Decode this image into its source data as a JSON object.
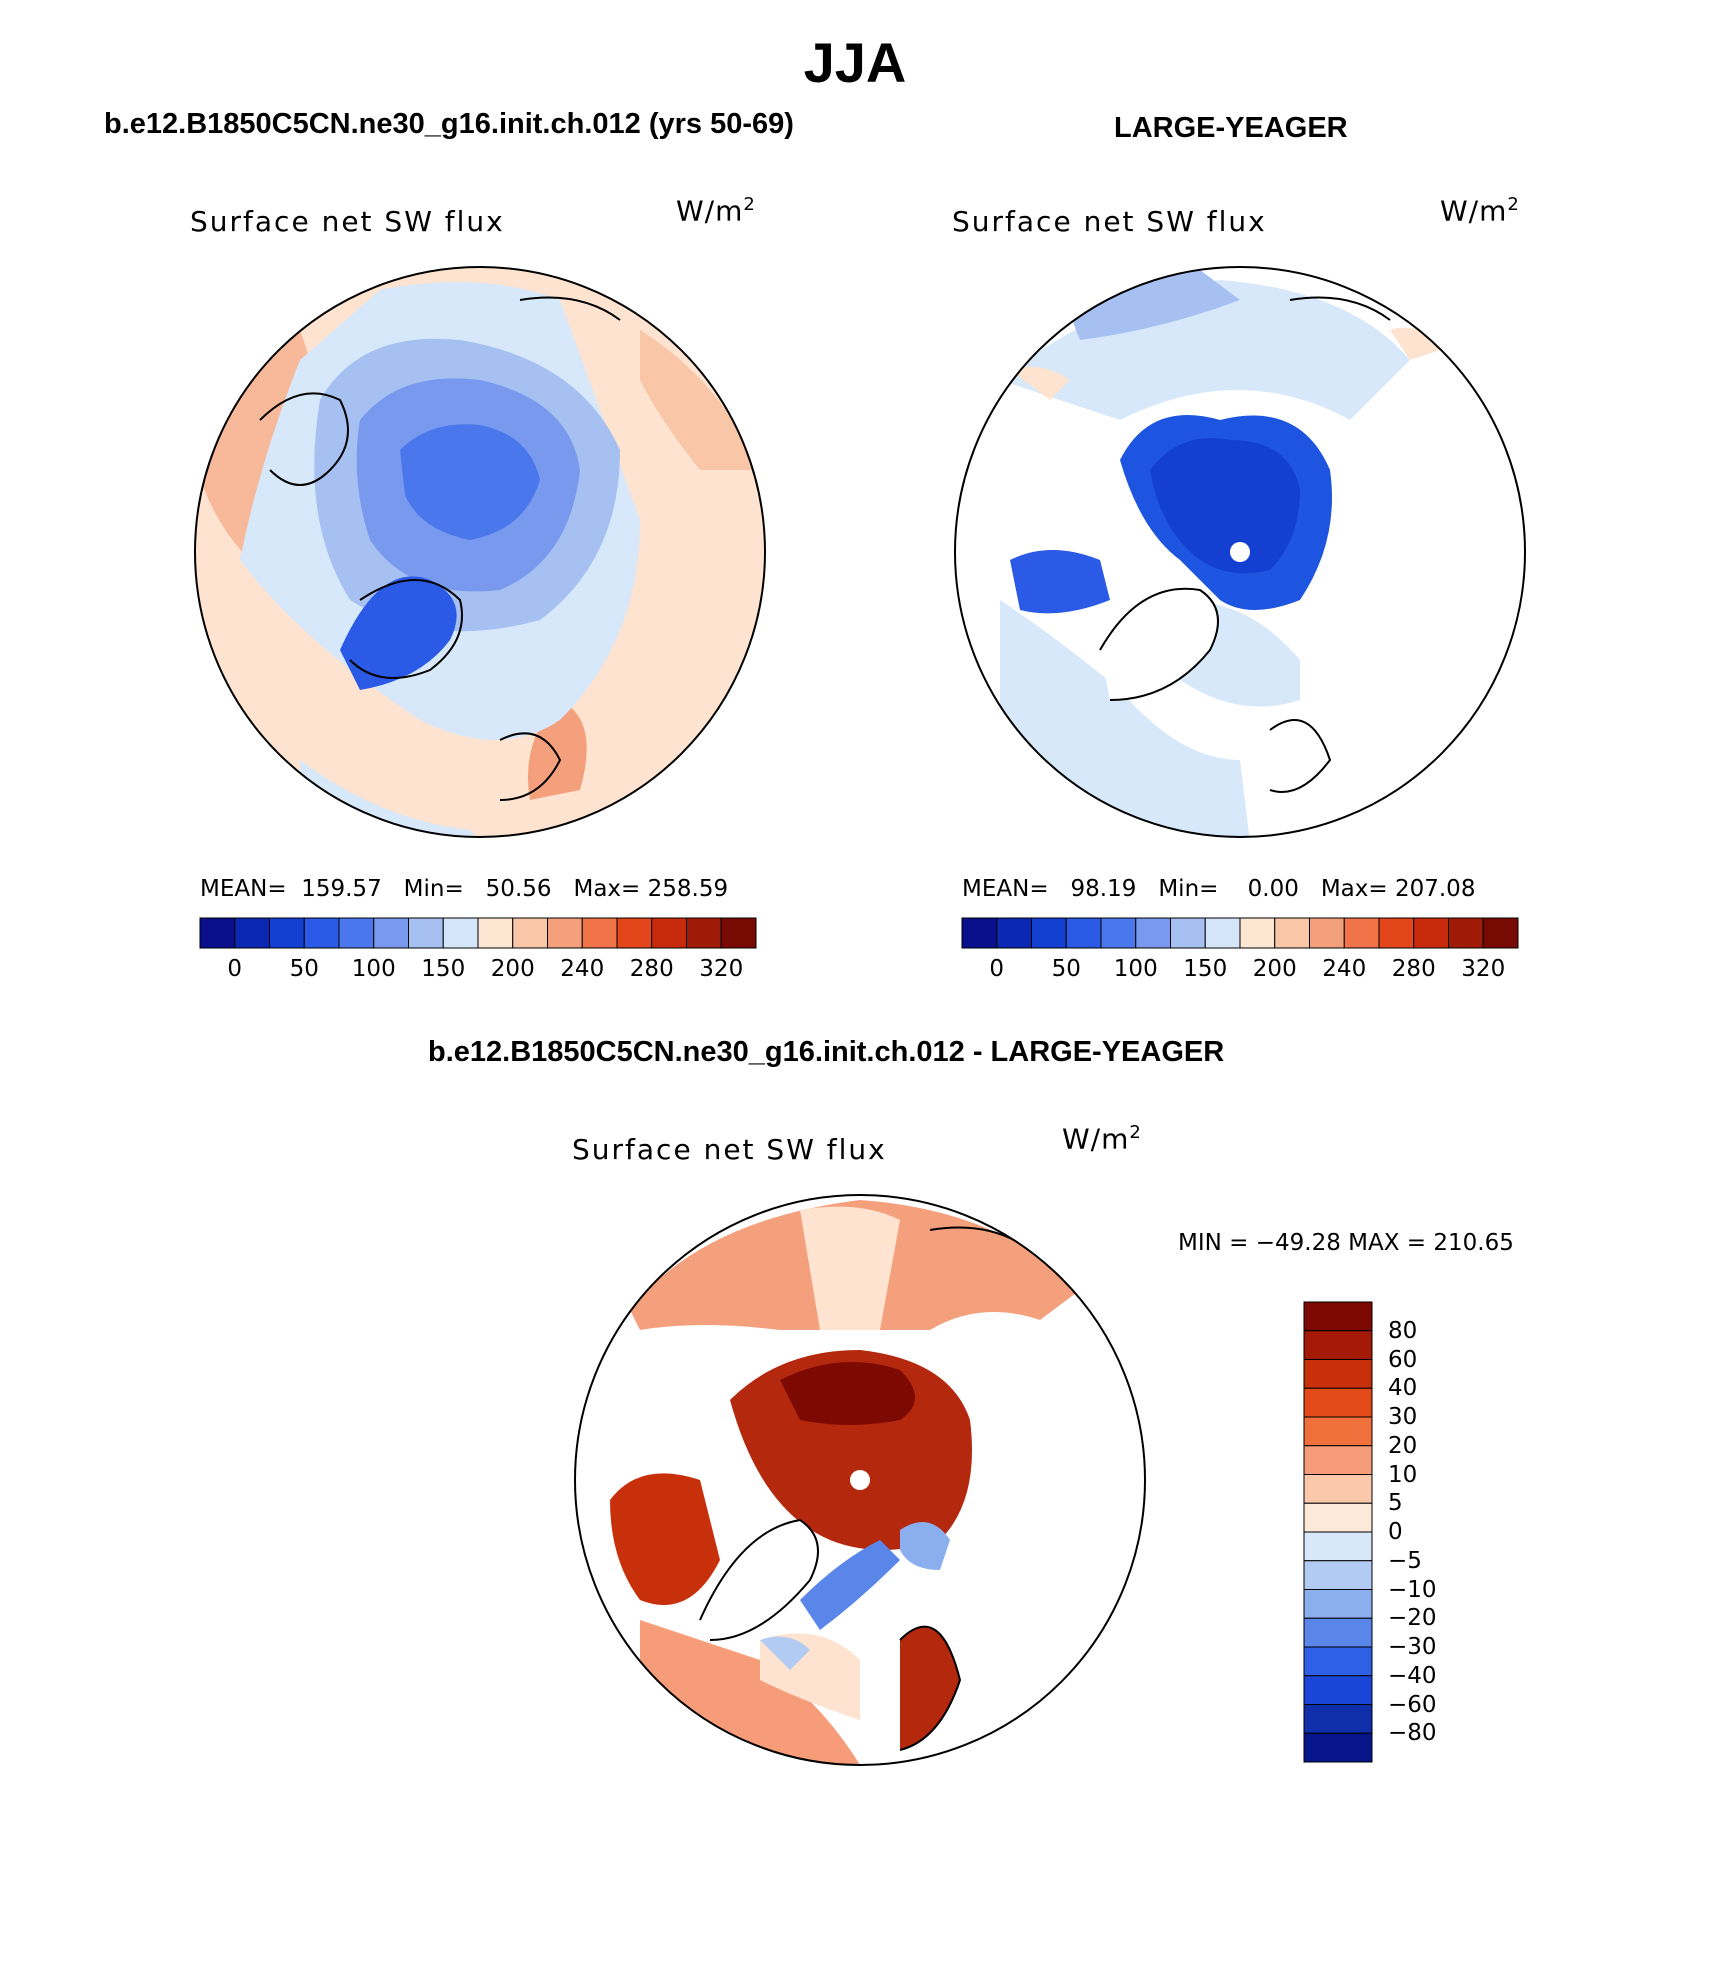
{
  "figure": {
    "title": "JJA",
    "colors": {
      "ocean_light_blue": "#d6e8fa",
      "mid_blue": "#8fb4ee",
      "deep_blue": "#1e55e0",
      "salmon": "#f8b89a",
      "peach": "#fde3d0",
      "dark_red": "#b4280e",
      "land_white": "#ffffff",
      "coast": "#000000"
    }
  },
  "panel_left": {
    "case_title": "b.e12.B1850C5CN.ne30_g16.init.ch.012 (yrs 50-69)",
    "variable": "Surface net SW flux",
    "units": "W/m",
    "units_exp": "2",
    "stats": {
      "mean_label": "MEAN=",
      "mean": "159.57",
      "min_label": "Min=",
      "min": "50.56",
      "max_label": "Max=",
      "max": "258.59"
    }
  },
  "panel_right": {
    "case_title": "LARGE-YEAGER",
    "variable": "Surface net SW flux",
    "units": "W/m",
    "units_exp": "2",
    "stats": {
      "mean_label": "MEAN=",
      "mean": "98.19",
      "min_label": "Min=",
      "min": "0.00",
      "max_label": "Max=",
      "max": "207.08"
    }
  },
  "panel_diff": {
    "case_title": "b.e12.B1850C5CN.ne30_g16.init.ch.012 - LARGE-YEAGER",
    "variable": "Surface net SW flux",
    "units": "W/m",
    "units_exp": "2",
    "minmax": "MIN = −49.28 MAX = 210.65"
  },
  "colorbar_horizontal": {
    "colors": [
      "#0a0f8c",
      "#0a28b4",
      "#1440d2",
      "#2a5ae6",
      "#4a78ec",
      "#7899ee",
      "#a6c0f2",
      "#d6e6fa",
      "#fde6d2",
      "#f9c6a8",
      "#f5a07c",
      "#f07448",
      "#e4461c",
      "#c82a0c",
      "#a01a08",
      "#780a04"
    ],
    "tick_labels": [
      "0",
      "50",
      "100",
      "150",
      "200",
      "240",
      "280",
      "320"
    ]
  },
  "colorbar_vertical": {
    "colors": [
      "#7d0a02",
      "#a41a06",
      "#c8300c",
      "#e24a18",
      "#f0703c",
      "#f79c78",
      "#fbc8ac",
      "#fde9da",
      "#d8e8f8",
      "#b2cbf2",
      "#8aaeee",
      "#5a86ea",
      "#2e5fe6",
      "#1a46d8",
      "#0f2eaa",
      "#06168a"
    ],
    "tick_labels": [
      "80",
      "60",
      "40",
      "30",
      "20",
      "10",
      "5",
      "0",
      "−5",
      "−10",
      "−20",
      "−30",
      "−40",
      "−60",
      "−80"
    ]
  }
}
